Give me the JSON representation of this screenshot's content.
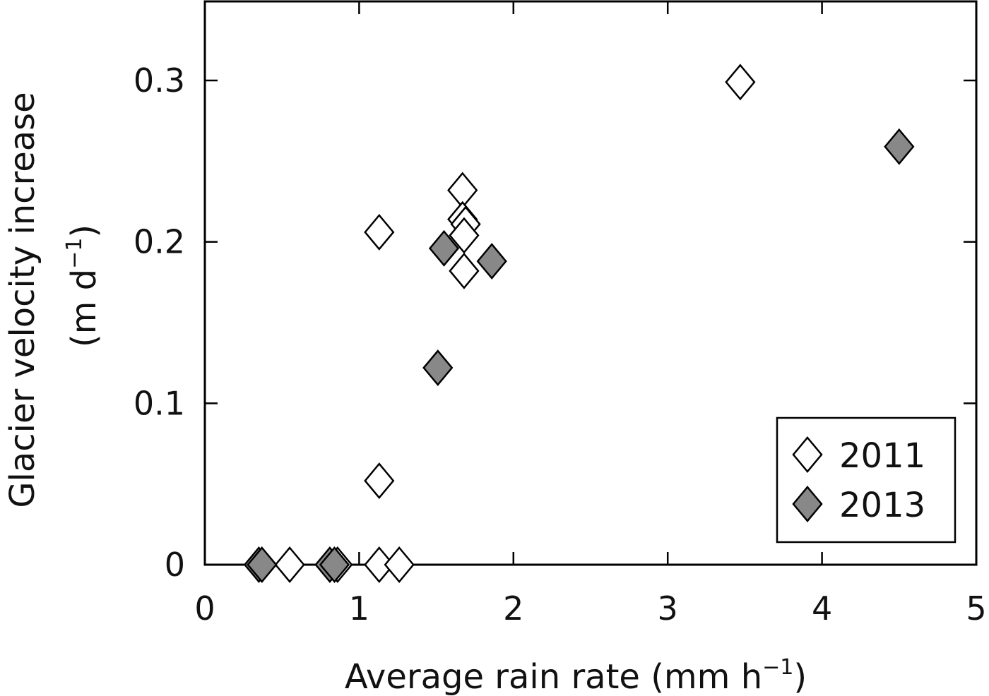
{
  "chart_data": {
    "type": "scatter",
    "title": "",
    "xlabel": {
      "main": "Average rain rate (mm h",
      "sup": "−1",
      "close": ")"
    },
    "ylabel": {
      "line1": "Glacier velocity increase",
      "line2_main": "(m d",
      "line2_sup": "−1",
      "line2_close": ")"
    },
    "xlim": [
      0,
      5
    ],
    "ylim": [
      0,
      0.35
    ],
    "xticks": [
      "0",
      "1",
      "2",
      "3",
      "4",
      "5"
    ],
    "yticks": [
      "0",
      "0.1",
      "0.2",
      "0.3"
    ],
    "legend_position": "bottom-right",
    "grid": false,
    "series": [
      {
        "name": "2011",
        "marker": "diamond",
        "color": "#ffffff",
        "points": [
          {
            "x": 3.47,
            "y": 0.299
          },
          {
            "x": 1.67,
            "y": 0.232
          },
          {
            "x": 1.67,
            "y": 0.214
          },
          {
            "x": 1.69,
            "y": 0.211
          },
          {
            "x": 1.68,
            "y": 0.204
          },
          {
            "x": 1.13,
            "y": 0.206
          },
          {
            "x": 1.68,
            "y": 0.182
          },
          {
            "x": 1.13,
            "y": 0.052
          },
          {
            "x": 0.55,
            "y": 0.0
          },
          {
            "x": 0.86,
            "y": 0.0
          },
          {
            "x": 1.13,
            "y": 0.0
          },
          {
            "x": 1.26,
            "y": 0.0
          }
        ]
      },
      {
        "name": "2013",
        "marker": "diamond",
        "color": "#888888",
        "points": [
          {
            "x": 4.5,
            "y": 0.259
          },
          {
            "x": 1.55,
            "y": 0.196
          },
          {
            "x": 1.86,
            "y": 0.188
          },
          {
            "x": 1.51,
            "y": 0.122
          },
          {
            "x": 0.35,
            "y": 0.0
          },
          {
            "x": 0.37,
            "y": 0.0
          },
          {
            "x": 0.81,
            "y": 0.0
          },
          {
            "x": 0.84,
            "y": 0.0
          }
        ]
      }
    ]
  }
}
